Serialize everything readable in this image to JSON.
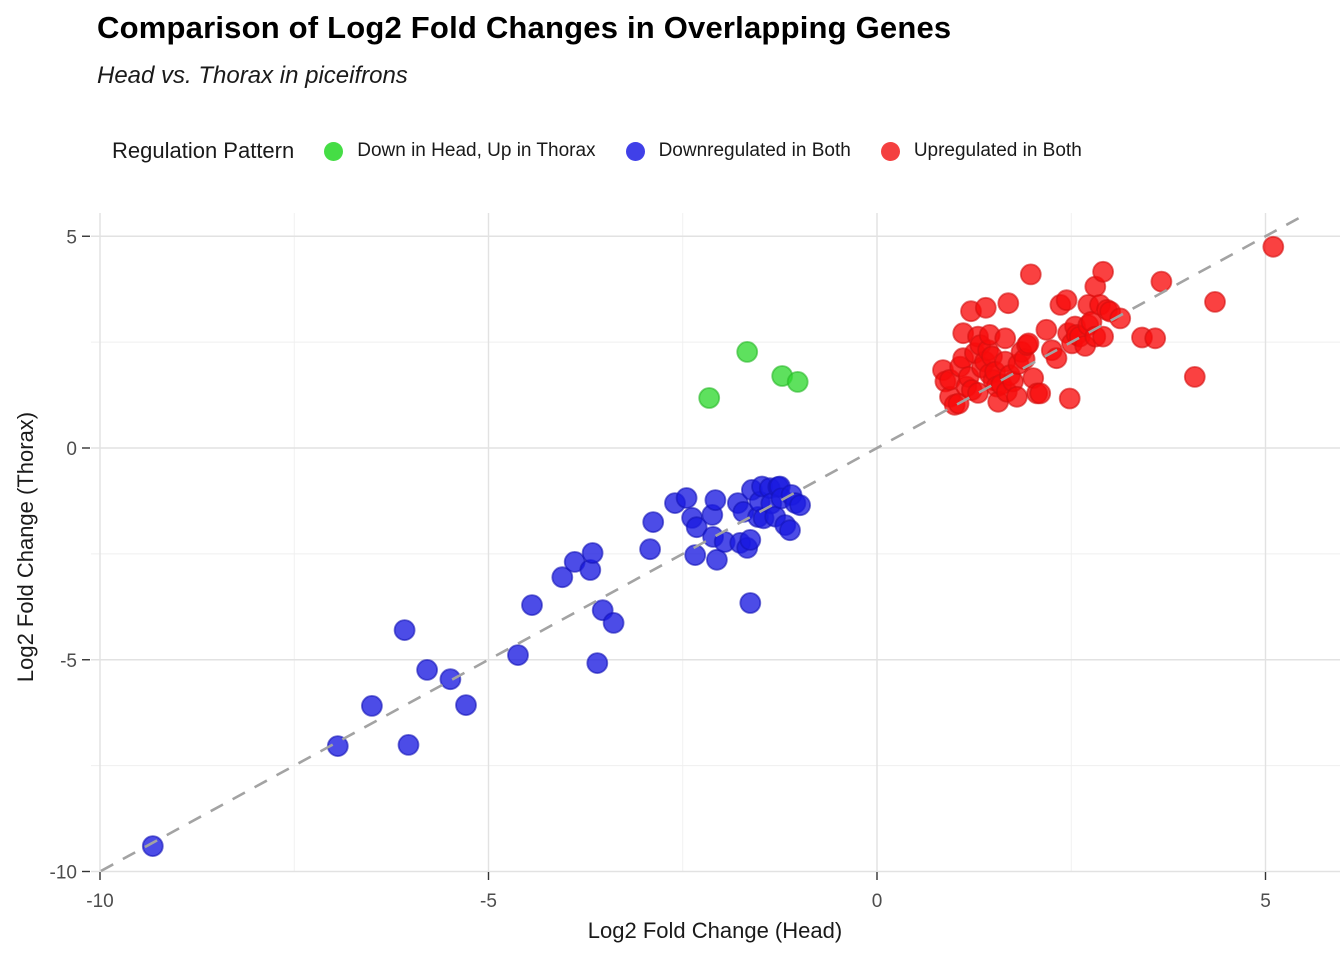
{
  "chart_data": {
    "type": "scatter",
    "title": "Comparison of Log2 Fold Changes in Overlapping Genes",
    "subtitle": "Head vs. Thorax in piceifrons",
    "legend_title": "Regulation Pattern",
    "legend_position": "top",
    "xlabel": "Log2 Fold Change (Head)",
    "ylabel": "Log2 Fold Change (Thorax)",
    "xlim": [
      -10.1,
      6.0
    ],
    "ylim": [
      -10.0,
      5.55
    ],
    "grid": true,
    "x_major_ticks": [
      -10,
      -5,
      0,
      5
    ],
    "x_minor_ticks": [
      -7.5,
      -2.5,
      2.5
    ],
    "y_major_ticks": [
      5,
      0,
      -5,
      -10
    ],
    "y_minor_ticks": [
      2.5,
      -2.5,
      -7.5
    ],
    "major_grid_color": "#e2e2e2",
    "minor_grid_color": "#efefef",
    "tick_color": "#333333",
    "reference_line": {
      "type": "identity_y_equals_x",
      "style": "dashed",
      "color": "#a3a3a3"
    },
    "series": [
      {
        "name": "Down in Head, Up in Thorax",
        "color": "#31d931",
        "stroke": "#28b828",
        "legend_color": "#45dd45",
        "points": [
          [
            -2.16,
            1.18
          ],
          [
            -1.67,
            2.27
          ],
          [
            -1.22,
            1.7
          ],
          [
            -1.02,
            1.56
          ]
        ]
      },
      {
        "name": "Downregulated in Both",
        "color": "#1a1ae0",
        "stroke": "#1414b8",
        "legend_color": "#4040e8",
        "points": [
          [
            -9.32,
            -9.4
          ],
          [
            -6.94,
            -7.04
          ],
          [
            -6.03,
            -7.01
          ],
          [
            -6.5,
            -6.09
          ],
          [
            -6.08,
            -4.3
          ],
          [
            -5.79,
            -5.24
          ],
          [
            -5.49,
            -5.46
          ],
          [
            -5.29,
            -6.07
          ],
          [
            -4.62,
            -4.89
          ],
          [
            -4.44,
            -3.71
          ],
          [
            -4.05,
            -3.05
          ],
          [
            -3.89,
            -2.69
          ],
          [
            -3.69,
            -2.88
          ],
          [
            -3.66,
            -2.48
          ],
          [
            -3.53,
            -3.83
          ],
          [
            -3.39,
            -4.13
          ],
          [
            -3.6,
            -5.08
          ],
          [
            -2.92,
            -2.39
          ],
          [
            -2.88,
            -1.75
          ],
          [
            -2.6,
            -1.3
          ],
          [
            -2.45,
            -1.18
          ],
          [
            -2.38,
            -1.65
          ],
          [
            -2.34,
            -2.53
          ],
          [
            -2.32,
            -1.87
          ],
          [
            -2.12,
            -1.58
          ],
          [
            -2.11,
            -2.1
          ],
          [
            -2.08,
            -1.23
          ],
          [
            -2.06,
            -2.64
          ],
          [
            -1.96,
            -2.22
          ],
          [
            -1.79,
            -1.3
          ],
          [
            -1.76,
            -2.24
          ],
          [
            -1.72,
            -1.51
          ],
          [
            -1.67,
            -2.36
          ],
          [
            -1.63,
            -2.17
          ],
          [
            -1.63,
            -3.66
          ],
          [
            -1.61,
            -0.99
          ],
          [
            -1.53,
            -1.63
          ],
          [
            -1.51,
            -1.27
          ],
          [
            -1.48,
            -0.91
          ],
          [
            -1.46,
            -1.66
          ],
          [
            -1.38,
            -0.95
          ],
          [
            -1.36,
            -1.31
          ],
          [
            -1.31,
            -1.62
          ],
          [
            -1.27,
            -0.92
          ],
          [
            -1.25,
            -0.91
          ],
          [
            -1.23,
            -1.19
          ],
          [
            -1.18,
            -1.82
          ],
          [
            -1.12,
            -1.94
          ],
          [
            -1.1,
            -1.11
          ],
          [
            -1.05,
            -1.3
          ],
          [
            -0.99,
            -1.35
          ]
        ]
      },
      {
        "name": "Upregulated in Both",
        "color": "#f90b0b",
        "stroke": "#d40f0f",
        "legend_color": "#f44040",
        "points": [
          [
            0.85,
            1.84
          ],
          [
            0.88,
            1.57
          ],
          [
            0.94,
            1.21
          ],
          [
            0.94,
            1.61
          ],
          [
            1.0,
            1.02
          ],
          [
            1.05,
            1.05
          ],
          [
            1.07,
            1.92
          ],
          [
            1.11,
            2.12
          ],
          [
            1.11,
            2.71
          ],
          [
            1.15,
            1.45
          ],
          [
            1.18,
            1.68
          ],
          [
            1.21,
            3.23
          ],
          [
            1.22,
            1.37
          ],
          [
            1.26,
            2.24
          ],
          [
            1.3,
            2.63
          ],
          [
            1.3,
            1.3
          ],
          [
            1.33,
            2.43
          ],
          [
            1.35,
            1.9
          ],
          [
            1.39,
            2.04
          ],
          [
            1.4,
            3.31
          ],
          [
            1.43,
            2.31
          ],
          [
            1.45,
            2.67
          ],
          [
            1.45,
            1.75
          ],
          [
            1.48,
            2.16
          ],
          [
            1.5,
            1.6
          ],
          [
            1.52,
            1.8
          ],
          [
            1.54,
            1.45
          ],
          [
            1.56,
            1.09
          ],
          [
            1.6,
            1.5
          ],
          [
            1.65,
            2.04
          ],
          [
            1.65,
            2.59
          ],
          [
            1.67,
            1.33
          ],
          [
            1.69,
            3.42
          ],
          [
            1.71,
            1.72
          ],
          [
            1.75,
            1.57
          ],
          [
            1.8,
            1.21
          ],
          [
            1.82,
            1.98
          ],
          [
            1.86,
            2.27
          ],
          [
            1.9,
            2.1
          ],
          [
            1.93,
            2.43
          ],
          [
            1.95,
            2.47
          ],
          [
            1.98,
            4.1
          ],
          [
            2.01,
            1.65
          ],
          [
            2.06,
            1.29
          ],
          [
            2.1,
            1.29
          ],
          [
            2.18,
            2.79
          ],
          [
            2.25,
            2.31
          ],
          [
            2.31,
            2.12
          ],
          [
            2.36,
            3.38
          ],
          [
            2.44,
            3.49
          ],
          [
            2.46,
            2.71
          ],
          [
            2.48,
            1.17
          ],
          [
            2.51,
            2.47
          ],
          [
            2.55,
            2.87
          ],
          [
            2.57,
            2.67
          ],
          [
            2.61,
            2.63
          ],
          [
            2.68,
            2.41
          ],
          [
            2.72,
            3.38
          ],
          [
            2.72,
            2.9
          ],
          [
            2.76,
            2.98
          ],
          [
            2.81,
            3.81
          ],
          [
            2.81,
            2.63
          ],
          [
            2.87,
            3.38
          ],
          [
            2.91,
            4.16
          ],
          [
            2.91,
            2.63
          ],
          [
            2.96,
            3.26
          ],
          [
            3.0,
            3.22
          ],
          [
            3.13,
            3.06
          ],
          [
            3.41,
            2.61
          ],
          [
            3.58,
            2.59
          ],
          [
            3.66,
            3.93
          ],
          [
            4.09,
            1.68
          ],
          [
            4.35,
            3.45
          ],
          [
            5.1,
            4.75
          ]
        ]
      }
    ]
  }
}
